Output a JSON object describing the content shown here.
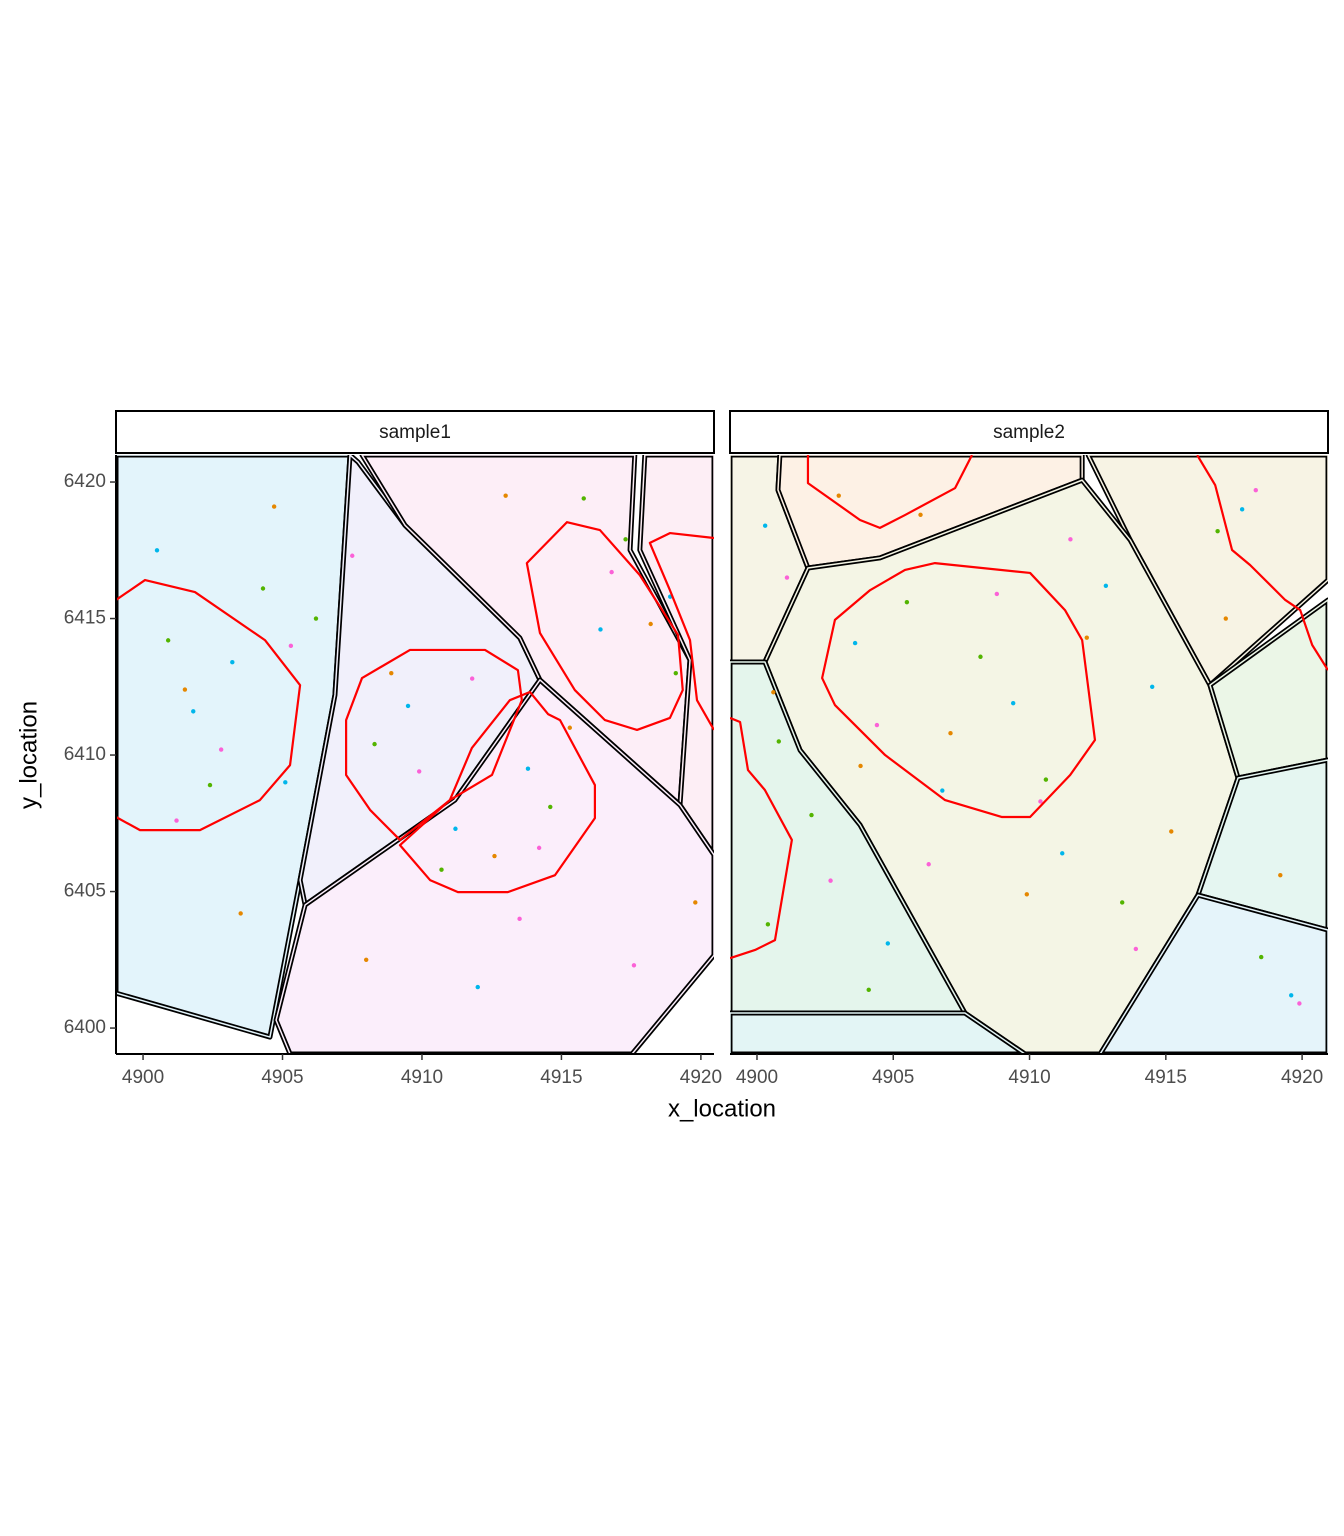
{
  "chart_data": [
    {
      "type": "scatter",
      "title": "sample1",
      "xlabel": "x_location",
      "ylabel": "y_location",
      "xlim": [
        4899.03,
        4920.47
      ],
      "ylim": [
        6399.05,
        6420.99
      ],
      "xticks": [
        4900,
        4905,
        4910,
        4915,
        4920
      ],
      "yticks": [
        6400,
        6405,
        6410,
        6415,
        6420
      ],
      "cell_border_color": "#000000",
      "nucleus_color": "#ff0000",
      "cells": [
        {
          "fill": "#e3f4fb",
          "x": [
            4899.03,
            4907.42,
            4906.88,
            4905.63,
            4904.55,
            4899.03
          ],
          "y": [
            6420.99,
            6420.99,
            6412.2,
            6405.42,
            6399.67,
            6401.28
          ]
        },
        {
          "fill": "#f1f0fb",
          "x": [
            4907.71,
            4909.39,
            4913.51,
            4914.23,
            4911.18,
            4905.81,
            4905.63,
            4906.88,
            4907.42
          ],
          "y": [
            6420.73,
            6418.42,
            6414.29,
            6412.75,
            6408.35,
            6404.51,
            6405.42,
            6412.2,
            6420.99
          ]
        },
        {
          "fill": "#fdeef7",
          "x": [
            4907.85,
            4917.63,
            4917.46,
            4919.61,
            4919.25,
            4914.23,
            4913.51,
            4909.39
          ],
          "y": [
            6420.99,
            6420.99,
            6417.51,
            6413.48,
            6408.17,
            6412.75,
            6414.29,
            6418.42
          ]
        },
        {
          "fill": "#fdeef5",
          "x": [
            4917.99,
            4920.47,
            4920.47,
            4919.25,
            4919.61,
            4917.81
          ],
          "y": [
            6420.99,
            6420.99,
            6406.34,
            6408.17,
            6413.48,
            6417.51
          ]
        },
        {
          "fill": "#fbeefb",
          "x": [
            4905.81,
            4911.18,
            4914.23,
            4919.25,
            4920.47,
            4920.47,
            4917.53,
            4905.27,
            4904.77
          ],
          "y": [
            6404.51,
            6408.35,
            6412.75,
            6408.17,
            6406.34,
            6402.67,
            6399.05,
            6399.05,
            6400.29
          ]
        }
      ],
      "nuclei": [
        {
          "closed": false,
          "x": [
            4899.03,
            4900.07,
            4901.86,
            4904.37,
            4905.63,
            4905.27,
            4904.19,
            4902.04,
            4899.89,
            4899.03
          ],
          "y": [
            6415.68,
            6416.41,
            6415.97,
            6414.21,
            6412.56,
            6409.63,
            6408.35,
            6407.25,
            6407.25,
            6407.73
          ]
        },
        {
          "closed": true,
          "x": [
            4907.28,
            4907.85,
            4909.57,
            4912.26,
            4913.44,
            4913.58,
            4912.51,
            4911.0,
            4909.21,
            4908.14,
            4907.28
          ],
          "y": [
            6411.28,
            6412.82,
            6413.85,
            6413.85,
            6413.11,
            6412.01,
            6409.27,
            6408.35,
            6406.89,
            6407.99,
            6409.27
          ]
        },
        {
          "closed": true,
          "x": [
            4909.21,
            4910.29,
            4911.29,
            4913.08,
            4914.77,
            4916.2,
            4916.2,
            4914.95,
            4914.52,
            4913.87,
            4913.15,
            4911.79,
            4911.0
          ],
          "y": [
            6406.7,
            6405.42,
            6404.98,
            6404.98,
            6405.6,
            6407.69,
            6408.9,
            6411.28,
            6411.5,
            6412.31,
            6412.01,
            6410.26,
            6408.35
          ]
        },
        {
          "closed": true,
          "x": [
            4913.76,
            4915.2,
            4916.38,
            4917.81,
            4919.18,
            4919.35,
            4918.89,
            4917.71,
            4916.56,
            4915.48,
            4914.23
          ],
          "y": [
            6417.03,
            6418.53,
            6418.24,
            6416.59,
            6414.4,
            6412.38,
            6411.36,
            6410.92,
            6411.28,
            6412.38,
            6414.47
          ]
        },
        {
          "closed": false,
          "x": [
            4920.47,
            4918.89,
            4918.17,
            4918.89,
            4919.61,
            4919.86,
            4920.47
          ],
          "y": [
            6417.95,
            6418.13,
            6417.77,
            6416.04,
            6414.21,
            6412.01,
            6410.92
          ]
        }
      ],
      "points": [
        {
          "color": "#00b6eb",
          "x": [
            4900.5,
            4901.8,
            4903.2,
            4905.1,
            4909.5,
            4911.2,
            4913.8,
            4916.4,
            4918.9,
            4912.0
          ],
          "y": [
            6417.5,
            6411.6,
            6413.4,
            6409.0,
            6411.8,
            6407.3,
            6409.5,
            6414.6,
            6415.8,
            6401.5
          ]
        },
        {
          "color": "#53b400",
          "x": [
            4900.9,
            4902.4,
            4904.3,
            4908.3,
            4910.7,
            4914.6,
            4917.3,
            4919.1,
            4906.2,
            4915.8
          ],
          "y": [
            6414.2,
            6408.9,
            6416.1,
            6410.4,
            6405.8,
            6408.1,
            6417.9,
            6413.0,
            6415.0,
            6419.4
          ]
        },
        {
          "color": "#e58700",
          "x": [
            4901.5,
            4904.7,
            4908.9,
            4912.6,
            4915.3,
            4918.2,
            4919.8,
            4908.0,
            4913.0,
            4903.5
          ],
          "y": [
            6412.4,
            6419.1,
            6413.0,
            6406.3,
            6411.0,
            6414.8,
            6404.6,
            6402.5,
            6419.5,
            6404.2
          ]
        },
        {
          "color": "#fb61d7",
          "x": [
            4902.8,
            4905.3,
            4909.9,
            4911.8,
            4914.2,
            4916.8,
            4917.6,
            4907.5,
            4913.5,
            4901.2
          ],
          "y": [
            6410.2,
            6414.0,
            6409.4,
            6412.8,
            6406.6,
            6416.7,
            6402.3,
            6417.3,
            6404.0,
            6407.6
          ]
        }
      ]
    },
    {
      "type": "scatter",
      "title": "sample2",
      "xlim": [
        4899.01,
        4920.95
      ],
      "ylim": [
        6399.05,
        6420.99
      ],
      "xticks": [
        4900,
        4905,
        4910,
        4915,
        4920
      ],
      "cell_border_color": "#000000",
      "nucleus_color": "#ff0000",
      "cells": [
        {
          "fill": "#f6f4e6",
          "x": [
            4899.01,
            4900.84,
            4900.77,
            4901.87,
            4900.29,
            4899.01
          ],
          "y": [
            6420.99,
            6420.99,
            6419.71,
            6416.85,
            6413.41,
            6413.41
          ]
        },
        {
          "fill": "#fdf1e5",
          "x": [
            4900.84,
            4911.93,
            4911.93,
            4904.51,
            4901.87,
            4900.77
          ],
          "y": [
            6420.99,
            6420.99,
            6420.07,
            6417.22,
            6416.85,
            6419.71
          ]
        },
        {
          "fill": "#f7f3e4",
          "x": [
            4912.15,
            4920.95,
            4920.95,
            4916.62,
            4913.69
          ],
          "y": [
            6420.99,
            6420.99,
            6416.41,
            6412.56,
            6417.88
          ]
        },
        {
          "fill": "#f4f5e5",
          "x": [
            4901.87,
            4904.51,
            4911.93,
            4913.69,
            4916.62,
            4917.65,
            4916.18,
            4912.59,
            4909.83,
            4907.63,
            4903.78,
            4901.58,
            4900.29
          ],
          "y": [
            6416.85,
            6417.22,
            6420.07,
            6417.88,
            6412.56,
            6409.16,
            6404.87,
            6399.05,
            6399.05,
            6400.55,
            6407.44,
            6410.18,
            6413.41
          ]
        },
        {
          "fill": "#ebf6e7",
          "x": [
            4916.62,
            4920.95,
            4920.95,
            4917.65
          ],
          "y": [
            6412.56,
            6415.68,
            6409.82,
            6409.16
          ]
        },
        {
          "fill": "#e5f6f1",
          "x": [
            4917.65,
            4920.95,
            4920.95,
            4916.18
          ],
          "y": [
            6409.16,
            6409.82,
            6403.59,
            6404.87
          ]
        },
        {
          "fill": "#e5f4fa",
          "x": [
            4916.18,
            4920.95,
            4920.95,
            4912.59
          ],
          "y": [
            6404.87,
            6403.59,
            6399.05,
            6399.05
          ]
        },
        {
          "fill": "#e4f5ec",
          "x": [
            4899.01,
            4900.29,
            4901.58,
            4903.78,
            4907.63,
            4899.01
          ],
          "y": [
            6413.41,
            6413.41,
            6410.18,
            6407.44,
            6400.55,
            6400.55
          ]
        },
        {
          "fill": "#e3f5f5",
          "x": [
            4899.01,
            4907.63,
            4909.83,
            4899.01
          ],
          "y": [
            6400.55,
            6400.55,
            6399.05,
            6399.05
          ]
        }
      ],
      "nuclei": [
        {
          "closed": true,
          "x": [
            4902.39,
            4902.86,
            4904.15,
            4905.43,
            4906.53,
            4910.02,
            4911.3,
            4911.93,
            4912.4,
            4911.49,
            4910.02,
            4908.99,
            4906.9,
            4904.7,
            4902.86
          ],
          "y": [
            6412.82,
            6414.95,
            6416.04,
            6416.78,
            6417.03,
            6416.67,
            6415.31,
            6414.21,
            6410.55,
            6409.27,
            6407.73,
            6407.73,
            6408.35,
            6410.0,
            6411.83
          ]
        },
        {
          "closed": false,
          "x": [
            4901.87,
            4901.87,
            4903.78,
            4904.51,
            4905.43,
            4907.27,
            4907.89
          ],
          "y": [
            6420.99,
            6419.96,
            6418.61,
            6418.32,
            6418.79,
            6419.78,
            6420.99
          ]
        },
        {
          "closed": false,
          "x": [
            4916.15,
            4916.81,
            4917.43,
            4918.09,
            4919.38,
            4919.93,
            4920.37,
            4920.95
          ],
          "y": [
            6420.99,
            6419.89,
            6417.51,
            6416.96,
            6415.68,
            6415.31,
            6414.03,
            6413.11
          ]
        },
        {
          "closed": false,
          "x": [
            4899.01,
            4899.38,
            4899.67,
            4900.29,
            4901.28,
            4900.66,
            4899.93,
            4899.01
          ],
          "y": [
            6411.36,
            6411.21,
            6409.45,
            6408.72,
            6406.89,
            6403.22,
            6402.86,
            6402.56
          ]
        }
      ],
      "points": [
        {
          "color": "#00b6eb",
          "x": [
            4900.3,
            4903.6,
            4906.8,
            4909.4,
            4911.2,
            4914.5,
            4917.8,
            4919.6,
            4904.8,
            4912.8
          ],
          "y": [
            6418.4,
            6414.1,
            6408.7,
            6411.9,
            6406.4,
            6412.5,
            6419.0,
            6401.2,
            6403.1,
            6416.2
          ]
        },
        {
          "color": "#53b400",
          "x": [
            4900.8,
            4902.0,
            4905.5,
            4908.2,
            4910.6,
            4913.4,
            4916.9,
            4918.5,
            4904.1,
            4900.4
          ],
          "y": [
            6410.5,
            6407.8,
            6415.6,
            6413.6,
            6409.1,
            6404.6,
            6418.2,
            6402.6,
            6401.4,
            6403.8
          ]
        },
        {
          "color": "#e58700",
          "x": [
            4900.6,
            4903.0,
            4907.1,
            4909.9,
            4912.1,
            4915.2,
            4917.2,
            4919.2,
            4906.0,
            4903.8
          ],
          "y": [
            6412.3,
            6419.5,
            6410.8,
            6404.9,
            6414.3,
            6407.2,
            6415.0,
            6405.6,
            6418.8,
            6409.6
          ]
        },
        {
          "color": "#fb61d7",
          "x": [
            4901.1,
            4904.4,
            4906.3,
            4908.8,
            4911.5,
            4913.9,
            4918.3,
            4919.9,
            4902.7,
            4910.4
          ],
          "y": [
            6416.5,
            6411.1,
            6406.0,
            6415.9,
            6417.9,
            6402.9,
            6419.7,
            6400.9,
            6405.4,
            6408.3
          ]
        }
      ]
    }
  ]
}
